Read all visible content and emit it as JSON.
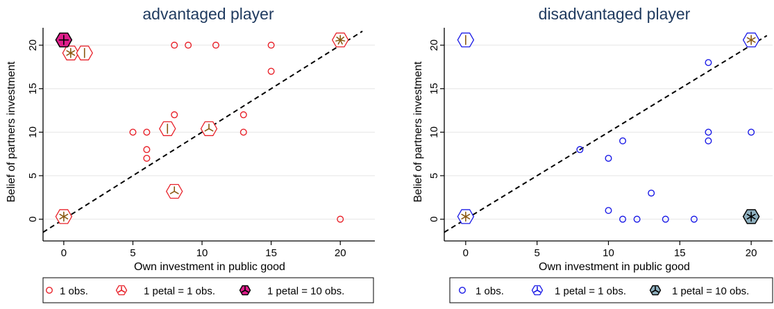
{
  "chart_data": [
    {
      "type": "scatter",
      "variant": "sunflower",
      "title": "advantaged player",
      "xlabel": "Own investment in public good",
      "ylabel": "Belief of partners investment",
      "xlim": [
        -1.5,
        22.5
      ],
      "ylim": [
        -2.5,
        22
      ],
      "xticks": [
        0,
        5,
        10,
        15,
        20
      ],
      "yticks": [
        0,
        5,
        10,
        15,
        20
      ],
      "grid": true,
      "diagonal": "y = x (dashed)",
      "colors": {
        "marker": "#e8222a",
        "petal": "#8b5a14",
        "dark_fill": "#e01e8c",
        "title": "#1f3a5f",
        "grid": "#e6e6e6"
      },
      "points": [
        {
          "x": 8,
          "y": 20
        },
        {
          "x": 9,
          "y": 20
        },
        {
          "x": 11,
          "y": 20
        },
        {
          "x": 15,
          "y": 20
        },
        {
          "x": 15,
          "y": 17
        },
        {
          "x": 13,
          "y": 12
        },
        {
          "x": 8,
          "y": 12
        },
        {
          "x": 5,
          "y": 10
        },
        {
          "x": 6,
          "y": 10
        },
        {
          "x": 13,
          "y": 10
        },
        {
          "x": 6,
          "y": 8
        },
        {
          "x": 6,
          "y": 7
        },
        {
          "x": 20,
          "y": 0
        }
      ],
      "light_sunflowers": [
        {
          "x": 0.5,
          "y": 19.1,
          "petals": 6
        },
        {
          "x": 1.5,
          "y": 19.1,
          "petals": 2
        },
        {
          "x": 7.5,
          "y": 10.4,
          "petals": 2
        },
        {
          "x": 10.5,
          "y": 10.4,
          "petals": 3
        },
        {
          "x": 8,
          "y": 3.2,
          "petals": 3
        },
        {
          "x": 0,
          "y": 0.3,
          "petals": 6
        },
        {
          "x": 20,
          "y": 20.6,
          "petals": 7
        }
      ],
      "dark_sunflowers": [
        {
          "x": 0,
          "y": 20.6,
          "petals": 4
        }
      ],
      "legend": [
        "1 obs.",
        "1 petal = 1 obs.",
        "1 petal = 10 obs."
      ]
    },
    {
      "type": "scatter",
      "variant": "sunflower",
      "title": "disadvantaged player",
      "xlabel": "Own investment in public good",
      "ylabel": "Belief of partners investment",
      "xlim": [
        -1.5,
        21.5
      ],
      "ylim": [
        -2.5,
        22
      ],
      "xticks": [
        0,
        5,
        10,
        15,
        20
      ],
      "yticks": [
        0,
        5,
        10,
        15,
        20
      ],
      "grid": true,
      "diagonal": "y = x (dashed)",
      "colors": {
        "marker": "#1a1ae6",
        "petal": "#8b5a14",
        "dark_fill": "#8fb0bf",
        "title": "#1f3a5f",
        "grid": "#e6e6e6"
      },
      "points": [
        {
          "x": 17,
          "y": 18
        },
        {
          "x": 17,
          "y": 10
        },
        {
          "x": 20,
          "y": 10
        },
        {
          "x": 17,
          "y": 9
        },
        {
          "x": 8,
          "y": 8
        },
        {
          "x": 11,
          "y": 9
        },
        {
          "x": 10,
          "y": 7
        },
        {
          "x": 13,
          "y": 3
        },
        {
          "x": 10,
          "y": 1
        },
        {
          "x": 11,
          "y": 0
        },
        {
          "x": 12,
          "y": 0
        },
        {
          "x": 14,
          "y": 0
        },
        {
          "x": 16,
          "y": 0
        }
      ],
      "light_sunflowers": [
        {
          "x": 0,
          "y": 20.6,
          "petals": 2
        },
        {
          "x": 20,
          "y": 20.6,
          "petals": 6
        },
        {
          "x": 0,
          "y": 0.3,
          "petals": 6
        }
      ],
      "dark_sunflowers": [
        {
          "x": 20,
          "y": 0.3,
          "petals": 6
        }
      ],
      "legend": [
        "1 obs.",
        "1 petal = 1 obs.",
        "1 petal = 10 obs."
      ]
    }
  ]
}
